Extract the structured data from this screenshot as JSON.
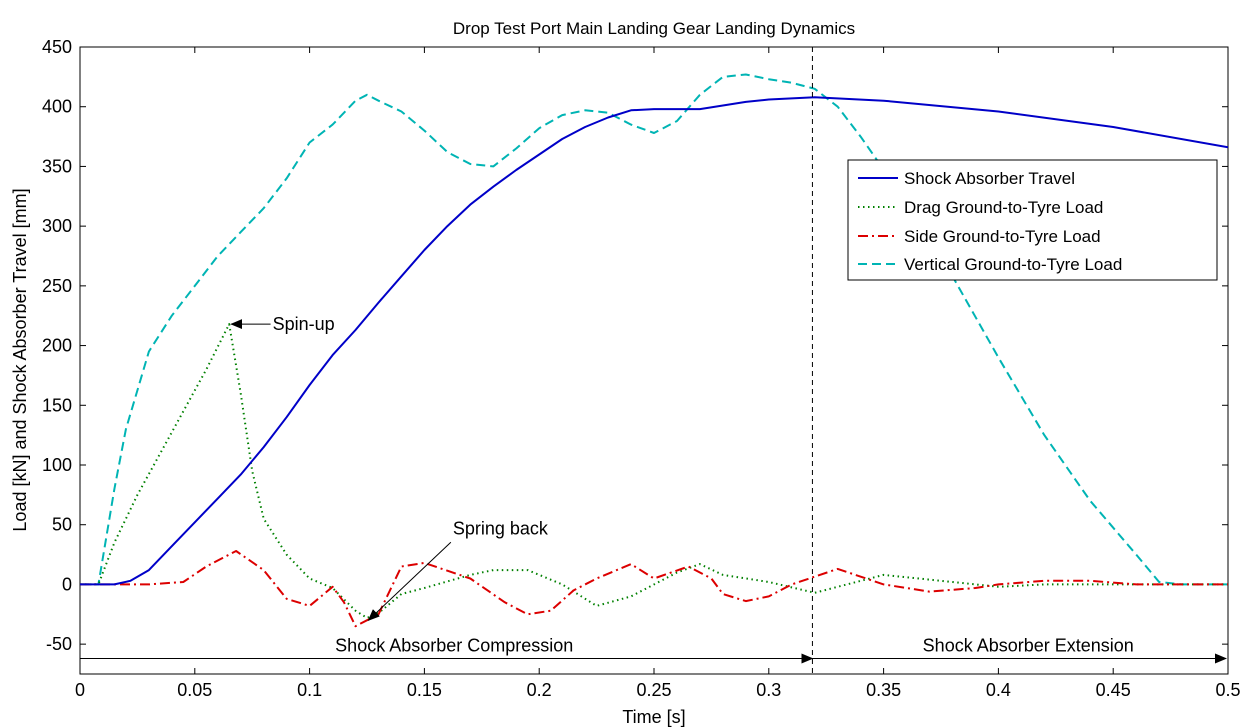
{
  "chart_data": {
    "type": "line",
    "title": "Drop Test Port Main Landing Gear Landing Dynamics",
    "xlabel": "Time [s]",
    "ylabel": "Load [kN] and Shock Absorber Travel [mm]",
    "xlim": [
      0,
      0.5
    ],
    "ylim": [
      -75,
      450
    ],
    "xticks": [
      0,
      0.05,
      0.1,
      0.15,
      0.2,
      0.25,
      0.3,
      0.35,
      0.4,
      0.45,
      0.5
    ],
    "xtick_labels": [
      "0",
      "0.05",
      "0.1",
      "0.15",
      "0.2",
      "0.25",
      "0.3",
      "0.35",
      "0.4",
      "0.45",
      "0.5"
    ],
    "yticks": [
      -50,
      0,
      50,
      100,
      150,
      200,
      250,
      300,
      350,
      400,
      450
    ],
    "ytick_labels": [
      "-50",
      "0",
      "50",
      "100",
      "150",
      "200",
      "250",
      "300",
      "350",
      "400",
      "450"
    ],
    "grid": false,
    "legend_position": "right",
    "series": [
      {
        "name": "Shock Absorber Travel",
        "color": "#0000c8",
        "style": "solid",
        "x": [
          0,
          0.015,
          0.022,
          0.03,
          0.04,
          0.05,
          0.06,
          0.07,
          0.08,
          0.09,
          0.1,
          0.11,
          0.12,
          0.13,
          0.14,
          0.15,
          0.16,
          0.17,
          0.18,
          0.19,
          0.2,
          0.21,
          0.22,
          0.23,
          0.24,
          0.25,
          0.26,
          0.27,
          0.28,
          0.29,
          0.3,
          0.31,
          0.32,
          0.35,
          0.4,
          0.45,
          0.5
        ],
        "y": [
          0,
          0,
          3,
          12,
          32,
          52,
          72,
          92,
          115,
          140,
          167,
          192,
          213,
          236,
          258,
          280,
          300,
          318,
          333,
          347,
          360,
          373,
          383,
          391,
          397,
          398,
          398,
          398,
          401,
          404,
          406,
          407,
          408,
          405,
          396,
          383,
          366
        ]
      },
      {
        "name": "Drag Ground-to-Tyre Load",
        "color": "#008000",
        "style": "dotted",
        "x": [
          0,
          0.008,
          0.015,
          0.025,
          0.035,
          0.045,
          0.055,
          0.065,
          0.07,
          0.075,
          0.08,
          0.09,
          0.1,
          0.11,
          0.12,
          0.125,
          0.13,
          0.14,
          0.15,
          0.17,
          0.18,
          0.195,
          0.21,
          0.225,
          0.24,
          0.26,
          0.27,
          0.28,
          0.3,
          0.32,
          0.35,
          0.38,
          0.4,
          0.42,
          0.45,
          0.47,
          0.5
        ],
        "y": [
          0,
          0,
          35,
          75,
          110,
          145,
          180,
          218,
          160,
          95,
          55,
          25,
          5,
          -3,
          -22,
          -28,
          -24,
          -8,
          -3,
          8,
          12,
          12,
          0,
          -18,
          -10,
          10,
          17,
          8,
          2,
          -7,
          8,
          2,
          -2,
          0,
          0,
          0,
          0
        ]
      },
      {
        "name": "Side Ground-to-Tyre Load",
        "color": "#dc0000",
        "style": "dashdot",
        "x": [
          0,
          0.03,
          0.045,
          0.055,
          0.068,
          0.08,
          0.09,
          0.1,
          0.105,
          0.11,
          0.115,
          0.12,
          0.13,
          0.14,
          0.15,
          0.17,
          0.185,
          0.195,
          0.205,
          0.215,
          0.225,
          0.24,
          0.25,
          0.265,
          0.275,
          0.28,
          0.29,
          0.3,
          0.31,
          0.33,
          0.35,
          0.37,
          0.39,
          0.4,
          0.42,
          0.44,
          0.46,
          0.5
        ],
        "y": [
          0,
          0,
          2,
          15,
          28,
          12,
          -12,
          -18,
          -10,
          -2,
          -15,
          -35,
          -25,
          15,
          18,
          5,
          -15,
          -25,
          -22,
          -5,
          5,
          17,
          5,
          15,
          5,
          -8,
          -14,
          -10,
          0,
          13,
          0,
          -6,
          -3,
          0,
          3,
          3,
          0,
          0
        ]
      },
      {
        "name": "Vertical Ground-to-Tyre Load",
        "color": "#00b4b4",
        "style": "dashed",
        "x": [
          0,
          0.008,
          0.015,
          0.02,
          0.03,
          0.04,
          0.05,
          0.06,
          0.07,
          0.08,
          0.09,
          0.1,
          0.11,
          0.12,
          0.125,
          0.13,
          0.14,
          0.15,
          0.16,
          0.17,
          0.18,
          0.19,
          0.2,
          0.21,
          0.22,
          0.23,
          0.24,
          0.25,
          0.26,
          0.27,
          0.28,
          0.29,
          0.3,
          0.31,
          0.32,
          0.33,
          0.34,
          0.36,
          0.38,
          0.4,
          0.42,
          0.44,
          0.46,
          0.47,
          0.48,
          0.5
        ],
        "y": [
          0,
          0,
          80,
          130,
          195,
          225,
          250,
          275,
          295,
          315,
          340,
          370,
          385,
          405,
          410,
          405,
          396,
          380,
          362,
          352,
          350,
          365,
          382,
          393,
          397,
          395,
          385,
          378,
          388,
          410,
          425,
          427,
          423,
          420,
          415,
          400,
          375,
          320,
          258,
          190,
          125,
          70,
          25,
          2,
          0,
          0
        ]
      }
    ],
    "vline": {
      "x": 0.319
    },
    "annotations": [
      {
        "text": "Spin-up",
        "point": [
          0.065,
          218
        ],
        "label_pos": [
          0.083,
          218
        ]
      },
      {
        "text": "Spring back",
        "point": [
          0.123,
          -30
        ],
        "label_pos": [
          0.165,
          42
        ]
      }
    ],
    "phase_arrows": [
      {
        "text": "Shock Absorber Compression",
        "x_start": 0,
        "x_end": 0.319,
        "y": -62,
        "label_center": 0.163
      },
      {
        "text": "Shock Absorber Extension",
        "x_start": 0.319,
        "x_end": 0.5,
        "y": -62,
        "label_center": 0.413
      }
    ]
  }
}
